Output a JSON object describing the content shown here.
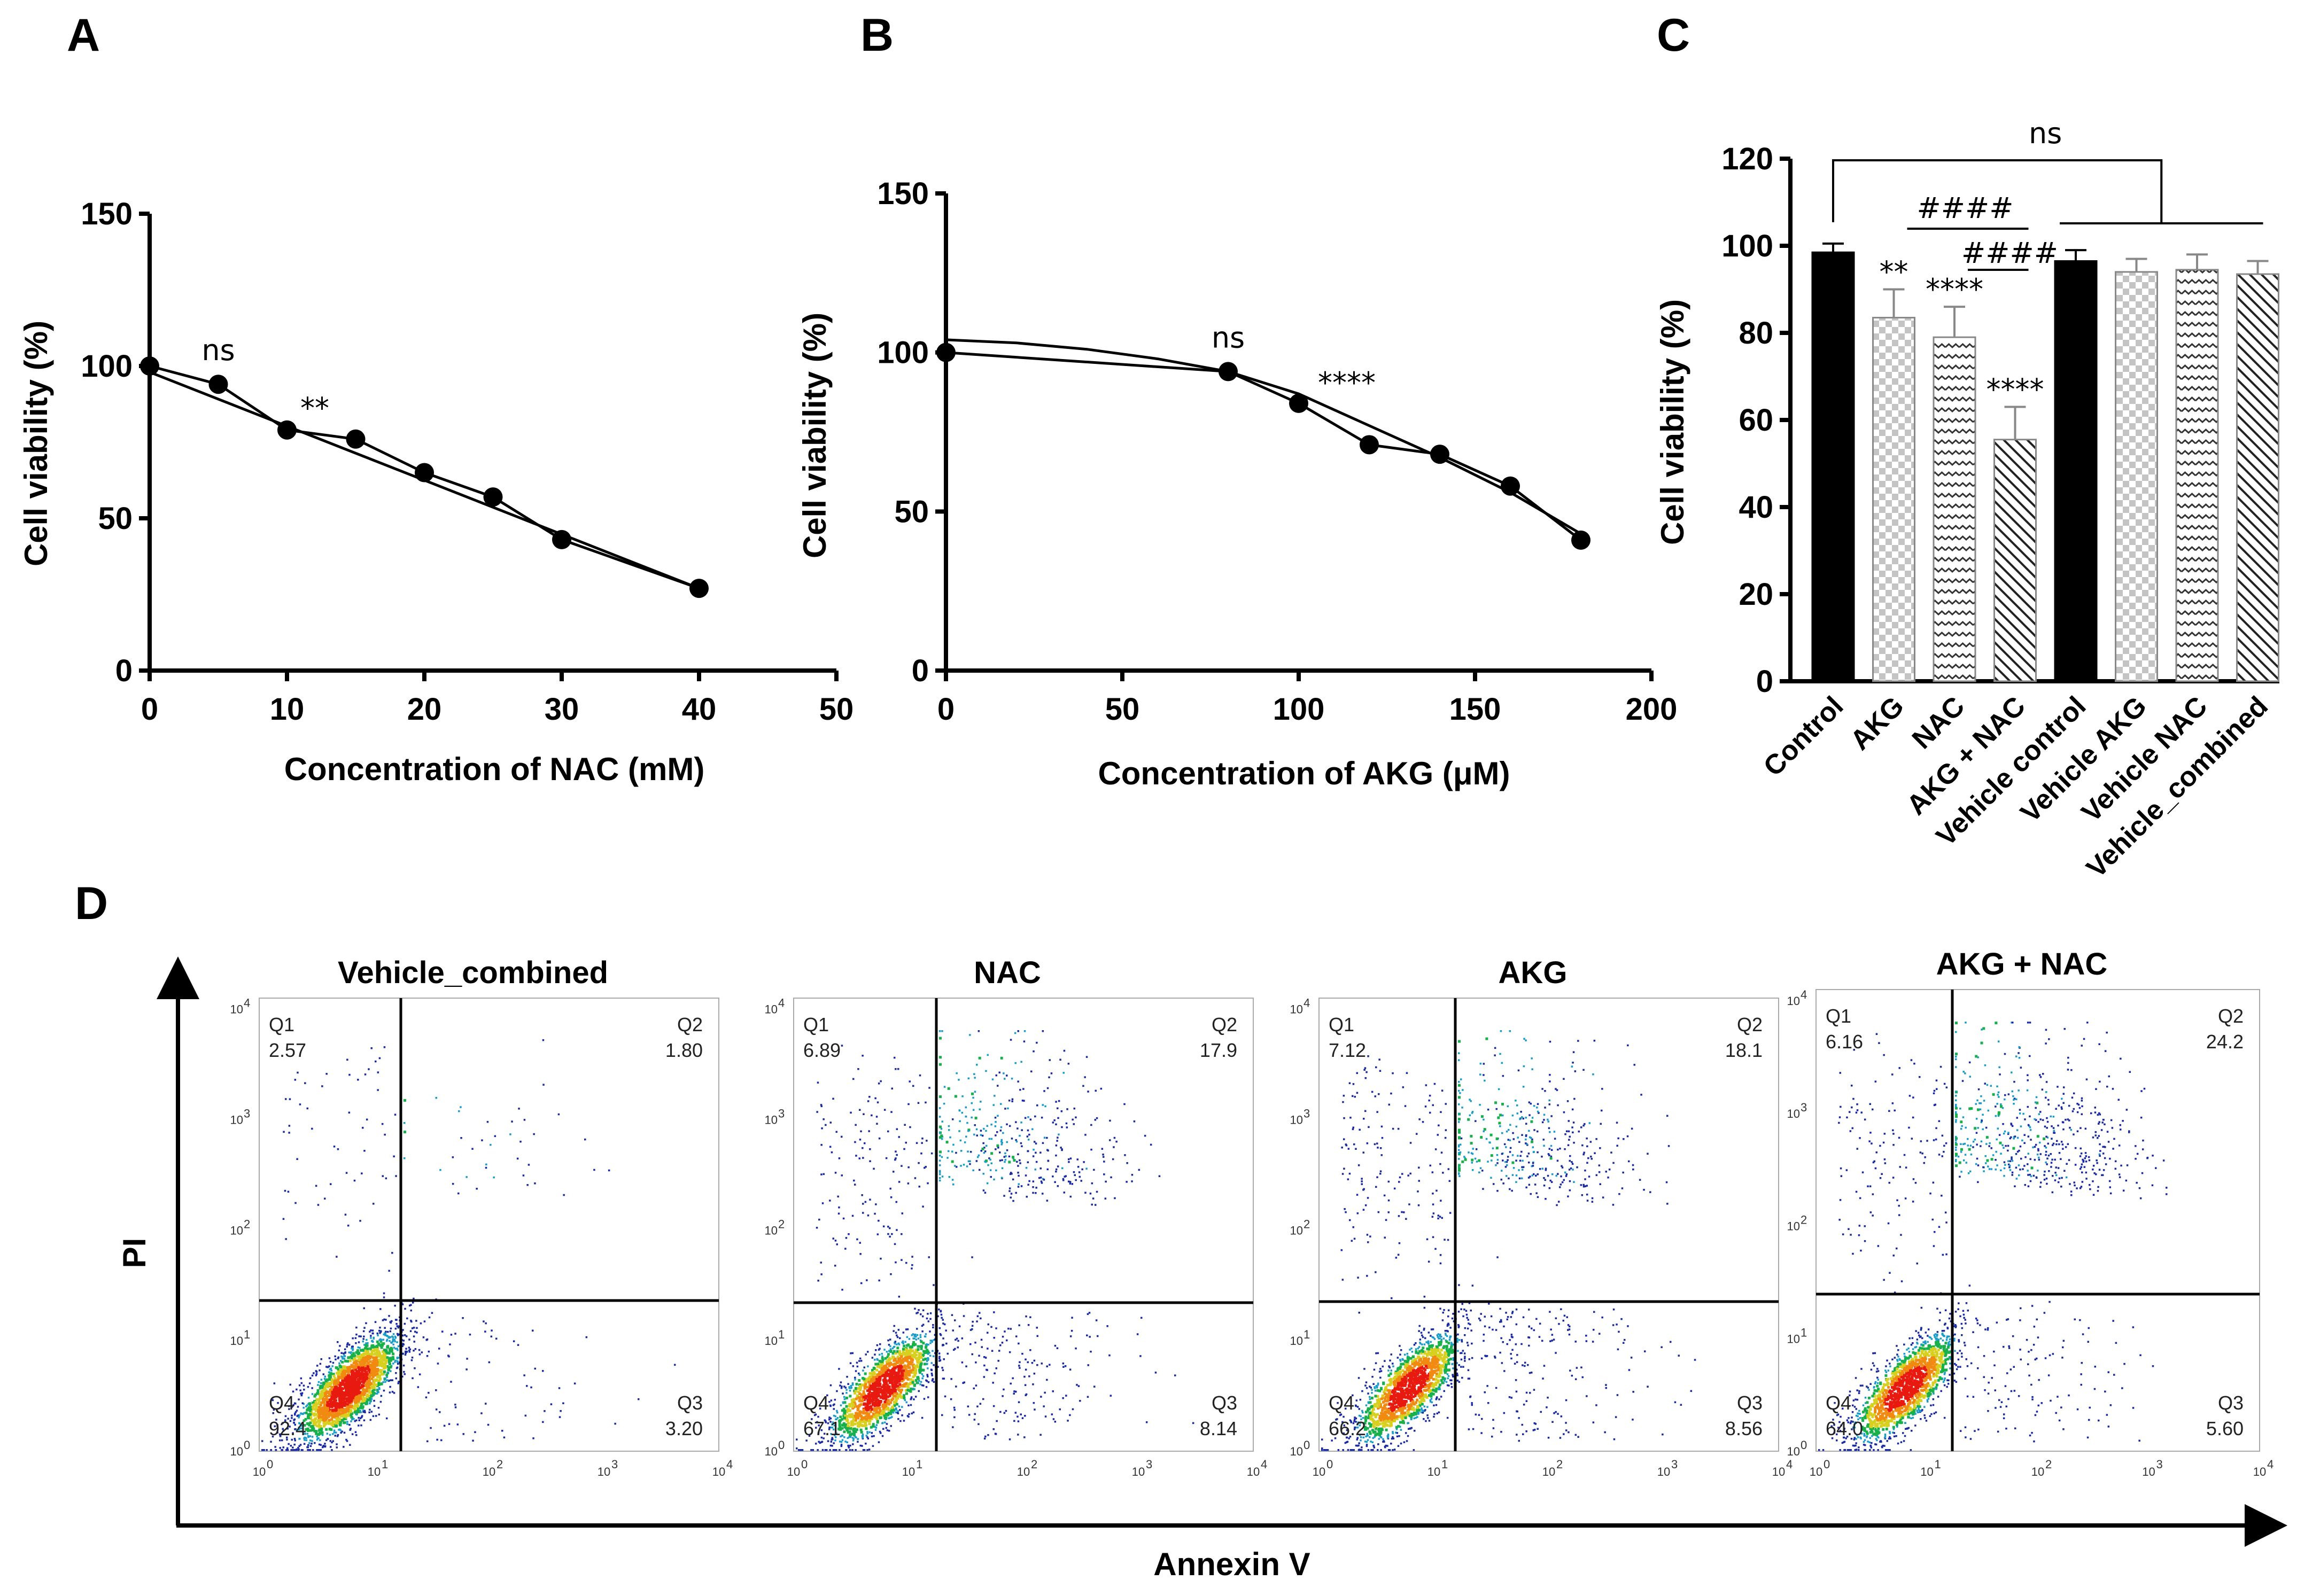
{
  "panel_letters": [
    "A",
    "B",
    "C",
    "D"
  ],
  "colors": {
    "ink": "#000000",
    "dot_low": "#1a2aa0",
    "dot_mid": "#18b04a",
    "dot_high": "#e81a10",
    "bar_solid": "#000000",
    "bar_gray": "#bbbbbb"
  },
  "chart_data": [
    {
      "panel": "A",
      "type": "line",
      "xlabel": "Concentration of NAC (mM)",
      "ylabel": "Cell viability (%)",
      "xlim": [
        0,
        50
      ],
      "ylim": [
        0,
        150
      ],
      "xticks": [
        0,
        10,
        20,
        30,
        40,
        50
      ],
      "yticks": [
        0,
        50,
        100,
        150
      ],
      "series": [
        {
          "name": "measured",
          "x": [
            0,
            5,
            10,
            15,
            20,
            25,
            30,
            40
          ],
          "y": [
            100,
            94,
            79,
            76,
            65,
            57,
            43,
            27
          ]
        },
        {
          "name": "fit",
          "x": [
            0,
            40
          ],
          "y": [
            98,
            27
          ]
        }
      ],
      "annotations": [
        {
          "text": "ns",
          "x": 5
        },
        {
          "text": "**",
          "x": 10
        }
      ]
    },
    {
      "panel": "B",
      "type": "line",
      "xlabel": "Concentration of AKG (μM)",
      "ylabel": "Cell viability (%)",
      "xlim": [
        0,
        200
      ],
      "ylim": [
        0,
        150
      ],
      "xticks": [
        0,
        50,
        100,
        150,
        200
      ],
      "yticks": [
        0,
        50,
        100,
        150
      ],
      "series": [
        {
          "name": "measured",
          "x": [
            0,
            80,
            100,
            120,
            140,
            160,
            180
          ],
          "y": [
            100,
            94,
            84,
            71,
            68,
            58,
            41
          ]
        },
        {
          "name": "fit",
          "x": [
            0,
            20,
            40,
            60,
            80,
            100,
            120,
            140,
            160,
            180
          ],
          "y": [
            104,
            103,
            101,
            98,
            94,
            87,
            77,
            67,
            56,
            43
          ]
        }
      ],
      "annotations": [
        {
          "text": "ns",
          "x": 80
        },
        {
          "text": "****",
          "x": 100
        }
      ]
    },
    {
      "panel": "C",
      "type": "bar",
      "ylabel": "Cell viability (%)",
      "ylim": [
        0,
        120
      ],
      "yticks": [
        0,
        20,
        40,
        60,
        80,
        100,
        120
      ],
      "categories": [
        "Control",
        "AKG",
        "NAC",
        "AKG + NAC",
        "Vehicle control",
        "Vehicle AKG",
        "Vehicle NAC",
        "Vehicle_combined"
      ],
      "values": [
        98.5,
        83.5,
        79,
        55.5,
        96.5,
        94,
        94.5,
        93.5
      ],
      "errors": [
        2,
        6.5,
        7,
        7.5,
        2.5,
        3,
        3.5,
        3
      ],
      "patterns": [
        "solid",
        "check",
        "wave",
        "hatch",
        "solid",
        "check",
        "wave",
        "hatch"
      ],
      "significance": [
        "",
        "**",
        "****",
        "****",
        "",
        "",
        "",
        ""
      ],
      "brackets": [
        {
          "text": "ns"
        },
        {
          "text": "####"
        },
        {
          "text": "####"
        }
      ]
    }
  ],
  "facs": {
    "x_axis_label": "Annexin V",
    "y_axis_label": "PI",
    "tick_labels": [
      "10",
      "10",
      "10",
      "10",
      "10"
    ],
    "tick_exponents": [
      "0",
      "1",
      "2",
      "3",
      "4"
    ],
    "plots": [
      {
        "title": "Vehicle_combined",
        "q1_label": "Q1",
        "q1": "2.57",
        "q2_label": "Q2",
        "q2": "1.80",
        "q3_label": "Q3",
        "q3": "3.20",
        "q4_label": "Q4",
        "q4": "92.4"
      },
      {
        "title": "NAC",
        "q1_label": "Q1",
        "q1": "6.89",
        "q2_label": "Q2",
        "q2": "17.9",
        "q3_label": "Q3",
        "q3": "8.14",
        "q4_label": "Q4",
        "q4": "67.1"
      },
      {
        "title": "AKG",
        "q1_label": "Q1",
        "q1": "7.12",
        "q2_label": "Q2",
        "q2": "18.1",
        "q3_label": "Q3",
        "q3": "8.56",
        "q4_label": "Q4",
        "q4": "66.2"
      },
      {
        "title": "AKG + NAC",
        "q1_label": "Q1",
        "q1": "6.16",
        "q2_label": "Q2",
        "q2": "24.2",
        "q3_label": "Q3",
        "q3": "5.60",
        "q4_label": "Q4",
        "q4": "64.0"
      }
    ]
  }
}
